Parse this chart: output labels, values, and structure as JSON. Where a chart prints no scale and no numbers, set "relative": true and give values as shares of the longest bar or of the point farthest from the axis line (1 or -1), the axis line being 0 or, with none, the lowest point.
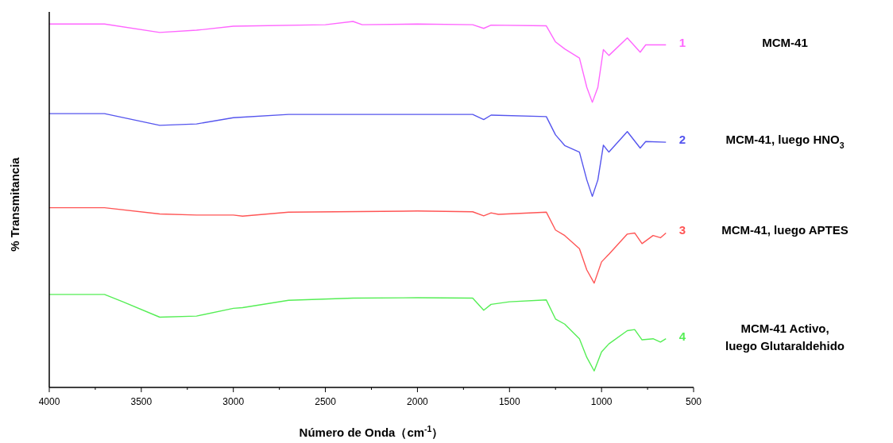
{
  "chart_data": {
    "type": "line",
    "relative": true,
    "xlabel": "Número de Onda（cm$^{-1}$）",
    "ylabel": "% Transmitancia",
    "xlim": [
      4000,
      500
    ],
    "xticks": [
      4000,
      3500,
      3000,
      2500,
      2000,
      1500,
      1000,
      500
    ],
    "grid": false,
    "line_style": "solid",
    "annotations": [
      "1",
      "2",
      "3",
      "4"
    ],
    "series": [
      {
        "name": "MCM-41",
        "color": "#ff66ff",
        "x": [
          4000,
          3700,
          3400,
          3200,
          3000,
          2500,
          2350,
          2300,
          2000,
          1700,
          1640,
          1600,
          1300,
          1250,
          1200,
          1120,
          1080,
          1050,
          1020,
          990,
          960,
          860,
          790,
          760,
          650
        ],
        "values": [
          0.993,
          0.993,
          0.97,
          0.976,
          0.987,
          0.991,
          1.0,
          0.991,
          0.993,
          0.991,
          0.981,
          0.99,
          0.988,
          0.944,
          0.925,
          0.9,
          0.82,
          0.779,
          0.82,
          0.923,
          0.907,
          0.955,
          0.916,
          0.936,
          0.936
        ]
      },
      {
        "name": "MCM-41, luego HNO$_{3}$",
        "color": "#5555ee",
        "x": [
          4000,
          3700,
          3400,
          3200,
          3000,
          2700,
          2000,
          1700,
          1640,
          1600,
          1300,
          1250,
          1200,
          1120,
          1080,
          1050,
          1020,
          990,
          960,
          860,
          790,
          760,
          650
        ],
        "values": [
          0.748,
          0.748,
          0.716,
          0.72,
          0.737,
          0.746,
          0.746,
          0.746,
          0.732,
          0.744,
          0.74,
          0.69,
          0.661,
          0.643,
          0.567,
          0.522,
          0.567,
          0.662,
          0.643,
          0.699,
          0.654,
          0.672,
          0.67
        ]
      },
      {
        "name": "MCM-41, luego APTES",
        "color": "#ff5555",
        "x": [
          4000,
          3700,
          3400,
          3200,
          3000,
          2950,
          2700,
          2000,
          1700,
          1640,
          1600,
          1560,
          1300,
          1250,
          1200,
          1120,
          1080,
          1040,
          1000,
          960,
          860,
          820,
          780,
          720,
          680,
          650
        ],
        "values": [
          0.491,
          0.491,
          0.474,
          0.471,
          0.471,
          0.468,
          0.479,
          0.482,
          0.48,
          0.469,
          0.477,
          0.473,
          0.479,
          0.43,
          0.415,
          0.379,
          0.321,
          0.285,
          0.343,
          0.364,
          0.419,
          0.422,
          0.393,
          0.415,
          0.409,
          0.422
        ]
      },
      {
        "name": "MCM-41 Activo, luego Glutaraldehido",
        "color": "#55ee55",
        "x": [
          4000,
          3700,
          3600,
          3400,
          3200,
          3000,
          2950,
          2700,
          2350,
          2000,
          1700,
          1640,
          1600,
          1500,
          1300,
          1250,
          1200,
          1120,
          1080,
          1040,
          1000,
          960,
          860,
          820,
          780,
          720,
          680,
          650
        ],
        "values": [
          0.254,
          0.254,
          0.234,
          0.192,
          0.195,
          0.216,
          0.218,
          0.238,
          0.244,
          0.245,
          0.244,
          0.211,
          0.227,
          0.234,
          0.239,
          0.187,
          0.173,
          0.133,
          0.082,
          0.045,
          0.097,
          0.119,
          0.155,
          0.158,
          0.13,
          0.133,
          0.124,
          0.133
        ]
      }
    ]
  }
}
